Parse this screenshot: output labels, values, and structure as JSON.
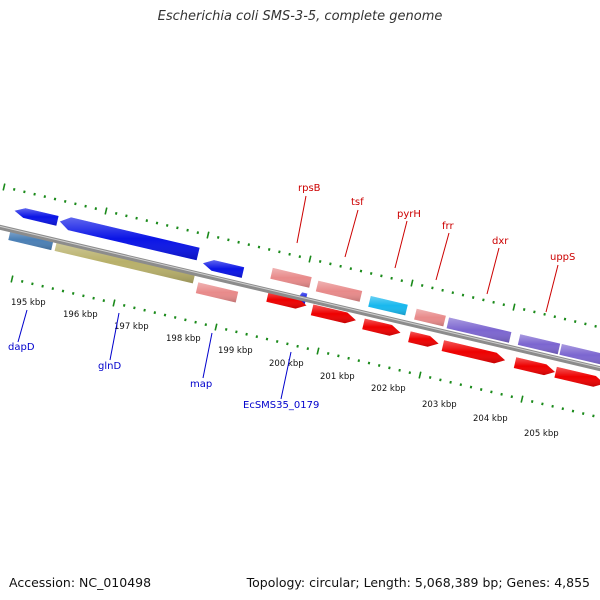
{
  "header": {
    "title": "Escherichia coli SMS-3-5, complete genome"
  },
  "footer": {
    "accession": "Accession: NC_010498",
    "summary": "Topology: circular; Length: 5,068,389 bp; Genes: 4,855"
  },
  "colors": {
    "backbone": "#8c8c8c",
    "tick": "#1a8a1a",
    "forward_label": "#cc0000",
    "reverse_label": "#0000cc",
    "cds_red": "#ee0000",
    "rrna_pink": "#e88a8a",
    "blue": "#0a14e6",
    "steelblue": "#4a7fb5",
    "olive": "#b8b06a",
    "cyan": "#18b8ee",
    "purple": "#7c66d0"
  },
  "kbp_labels": [
    "195 kbp",
    "196 kbp",
    "197 kbp",
    "198 kbp",
    "199 kbp",
    "200 kbp",
    "201 kbp",
    "202 kbp",
    "203 kbp",
    "204 kbp",
    "205 kbp"
  ],
  "gene_labels": {
    "forward": [
      "rpsB",
      "tsf",
      "pyrH",
      "frr",
      "dxr",
      "uppS"
    ],
    "reverse": [
      "dapD",
      "glnD",
      "map",
      "EcSMS35_0179"
    ]
  }
}
